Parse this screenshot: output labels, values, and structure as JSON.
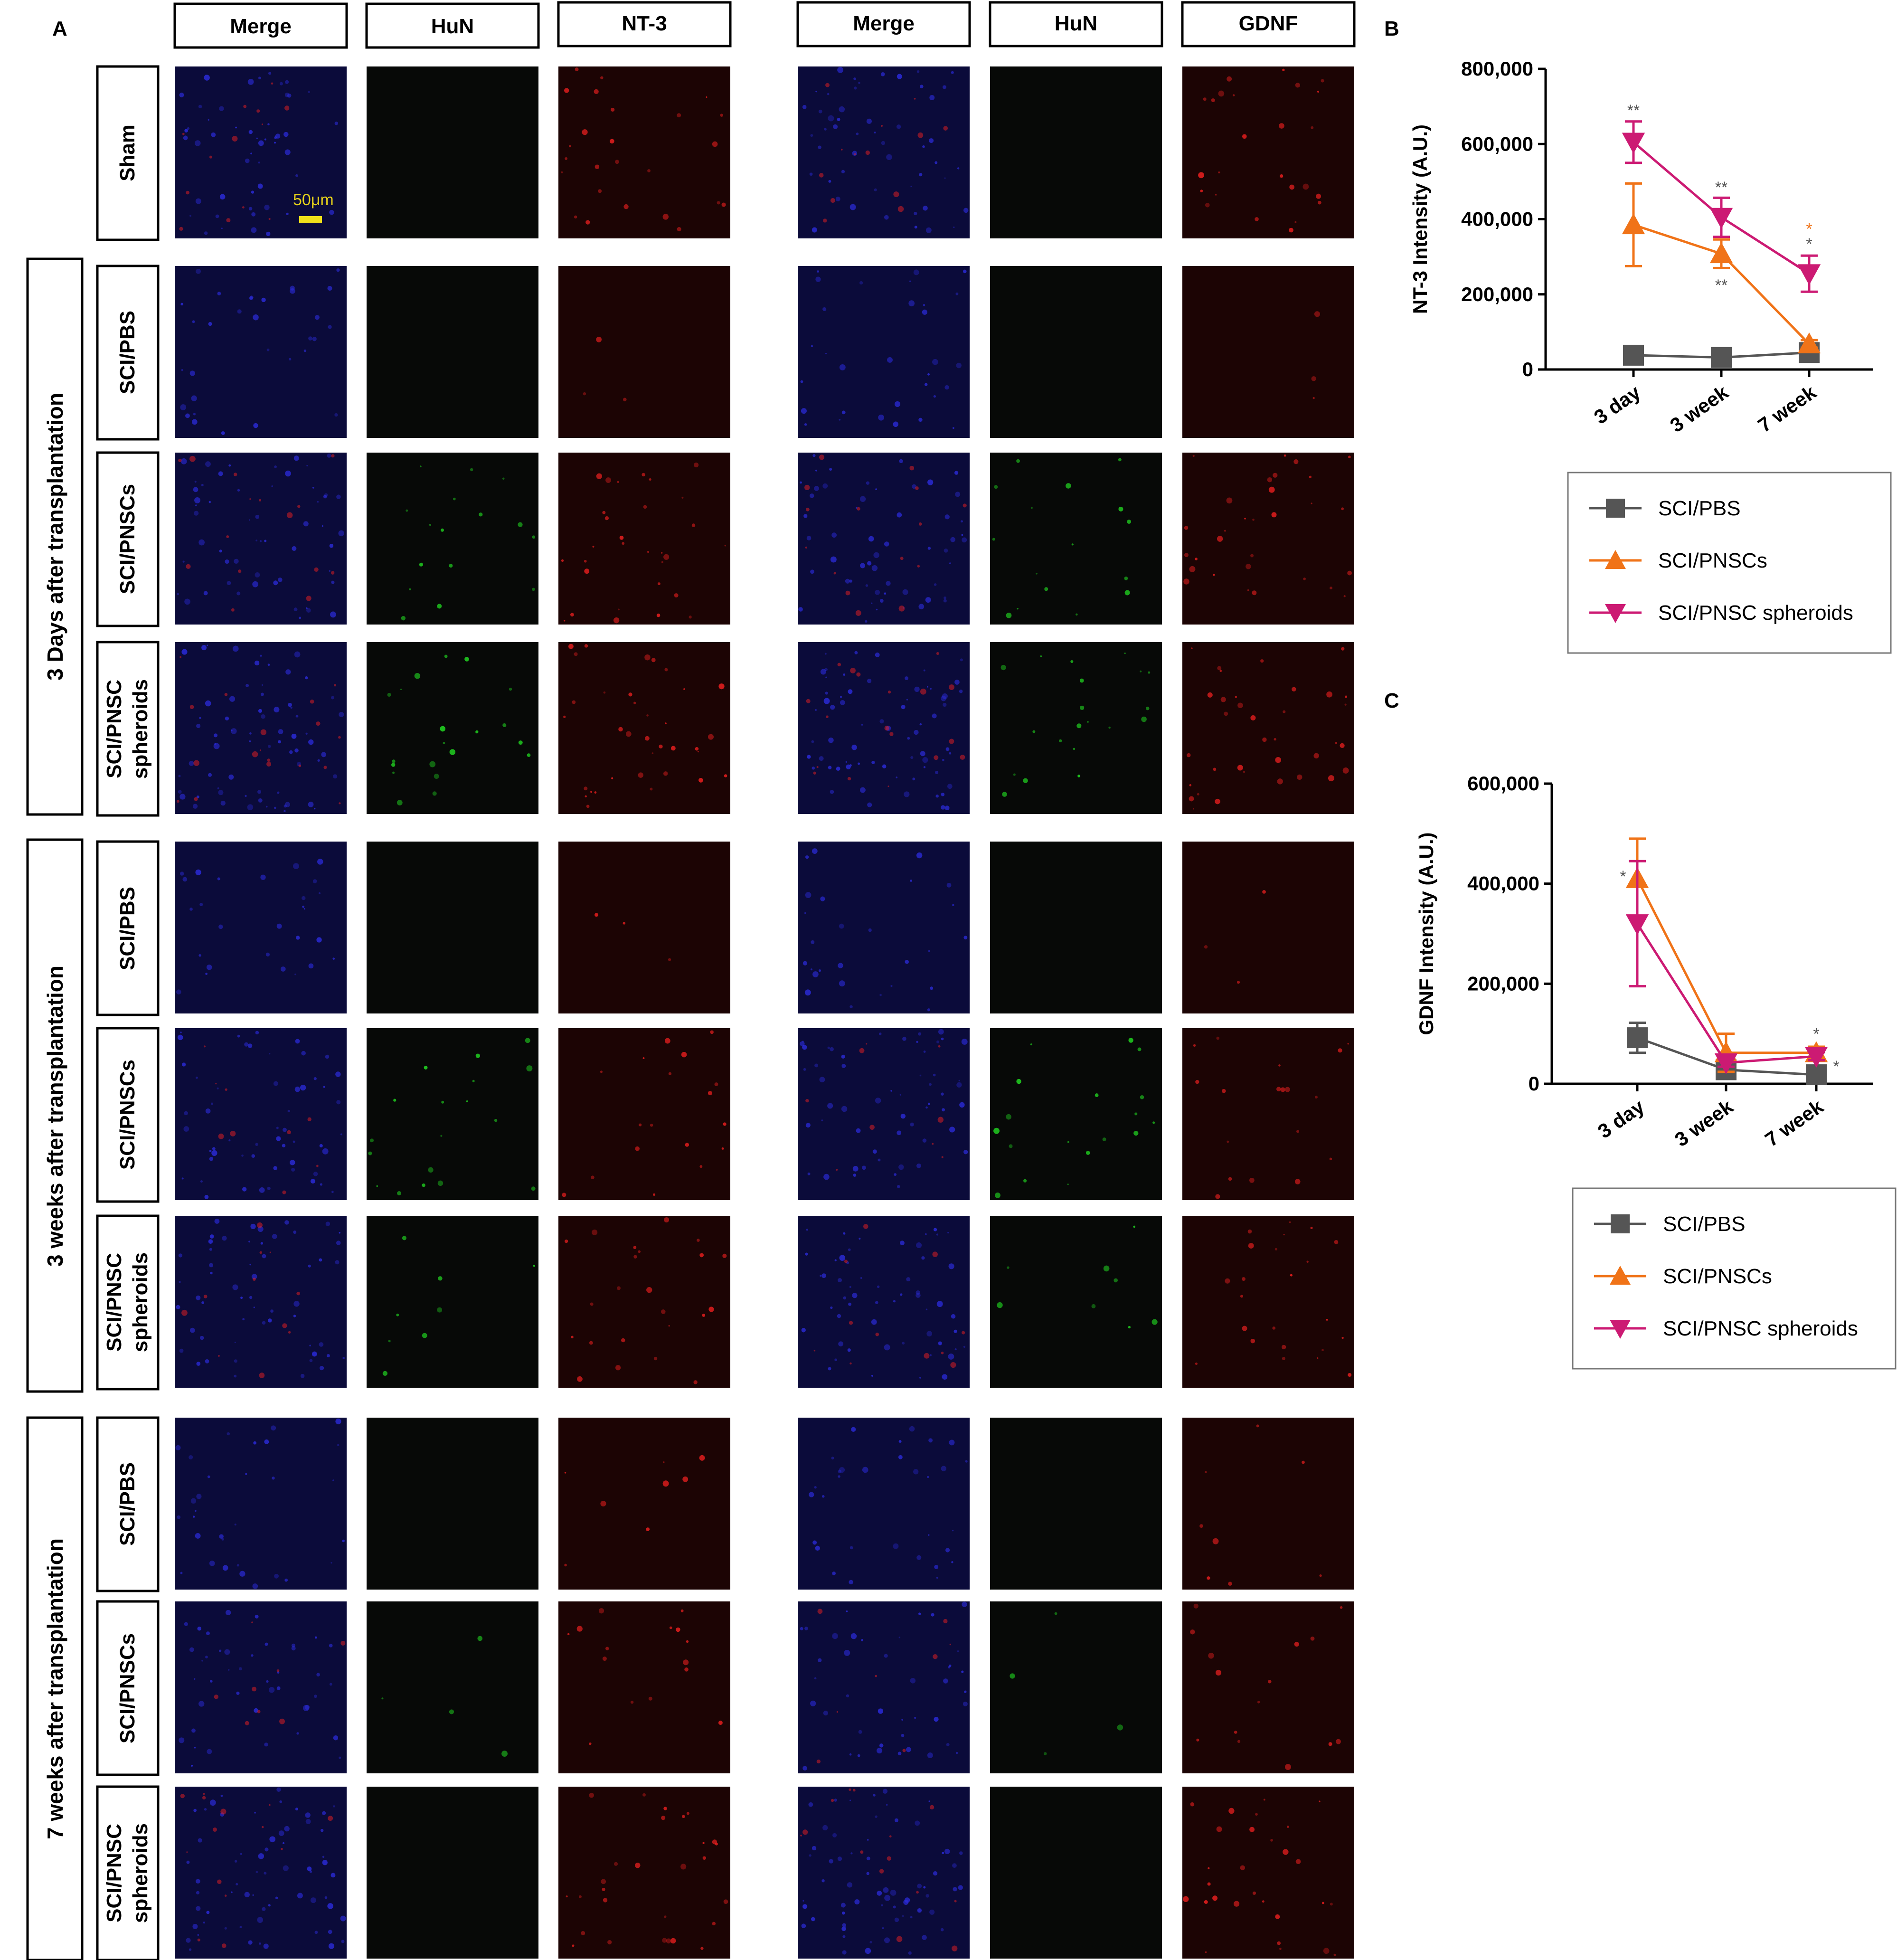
{
  "figure": {
    "panel_letters": [
      "A",
      "B",
      "C"
    ],
    "column_headers_left": [
      "Merge",
      "HuN",
      "NT-3"
    ],
    "column_headers_right": [
      "Merge",
      "HuN",
      "GDNF"
    ],
    "scale_bar_label": "50μm",
    "groups": [
      {
        "label": "",
        "rows": [
          "Sham"
        ]
      },
      {
        "label": "3 Days after transplantation",
        "rows": [
          "SCI/PBS",
          "SCI/PNSCs",
          "SCI/PNSC spheroids"
        ]
      },
      {
        "label": "3 weeks after transplantation",
        "rows": [
          "SCI/PBS",
          "SCI/PNSCs",
          "SCI/PNSC spheroids"
        ]
      },
      {
        "label": "7 weeks after transplantation",
        "rows": [
          "SCI/PBS",
          "SCI/PNSCs",
          "SCI/PNSC spheroids"
        ]
      }
    ],
    "micrograph_colors": {
      "merge": "#1a1a7a",
      "hun": "#0a0f0a",
      "marker": "#2a0606",
      "green": "#22dd22",
      "red": "#ee2020",
      "blue": "#2b2bd9"
    }
  },
  "chart_data": [
    {
      "panel": "B",
      "type": "line",
      "ylabel": "NT-3 Intensity (A.U.)",
      "xlabel": "",
      "categories": [
        "3 day",
        "3 week",
        "7 week"
      ],
      "yticks": [
        "0",
        "200,000",
        "400,000",
        "600,000",
        "800,000"
      ],
      "ylim": [
        0,
        800000
      ],
      "series": [
        {
          "name": "SCI/PBS",
          "color": "#555555",
          "marker": "square",
          "values": [
            38000,
            32000,
            45000
          ],
          "errors": [
            8000,
            6000,
            12000
          ]
        },
        {
          "name": "SCI/PNSCs",
          "color": "#f07318",
          "marker": "triangle-up",
          "values": [
            385000,
            308000,
            68000
          ],
          "errors": [
            110000,
            38000,
            10000
          ]
        },
        {
          "name": "SCI/PNSC spheroids",
          "color": "#cc1a73",
          "marker": "triangle-down",
          "values": [
            605000,
            405000,
            255000
          ],
          "errors": [
            55000,
            52000,
            48000
          ]
        }
      ],
      "annotations": [
        {
          "category": "3 day",
          "value": 690000,
          "text": "**",
          "color": "#555555"
        },
        {
          "category": "3 week",
          "value": 485000,
          "text": "**",
          "color": "#555555"
        },
        {
          "category": "3 week",
          "value": 225000,
          "text": "**",
          "color": "#555555"
        },
        {
          "category": "7 week",
          "value": 375000,
          "text": "*",
          "color": "#f07318"
        },
        {
          "category": "7 week",
          "value": 335000,
          "text": "*",
          "color": "#555555"
        }
      ],
      "legend": {
        "placement": "below",
        "entries": [
          "SCI/PBS",
          "SCI/PNSCs",
          "SCI/PNSC spheroids"
        ]
      }
    },
    {
      "panel": "C",
      "type": "line",
      "ylabel": "GDNF Intensity (A.U.)",
      "xlabel": "",
      "categories": [
        "3 day",
        "3 week",
        "7 week"
      ],
      "yticks": [
        "0",
        "200,000",
        "400,000",
        "600,000"
      ],
      "ylim": [
        0,
        600000
      ],
      "series": [
        {
          "name": "SCI/PBS",
          "color": "#555555",
          "marker": "square",
          "values": [
            92000,
            28000,
            18000
          ],
          "errors": [
            30000,
            5000,
            5000
          ]
        },
        {
          "name": "SCI/PNSCs",
          "color": "#f07318",
          "marker": "triangle-up",
          "values": [
            410000,
            62000,
            62000
          ],
          "errors": [
            80000,
            38000,
            12000
          ]
        },
        {
          "name": "SCI/PNSC spheroids",
          "color": "#cc1a73",
          "marker": "triangle-down",
          "values": [
            320000,
            42000,
            55000
          ],
          "errors": [
            125000,
            8000,
            8000
          ]
        }
      ],
      "annotations": [
        {
          "category": "3 day",
          "value": 415000,
          "text": "*",
          "color": "#555555",
          "side": "left"
        },
        {
          "category": "7 week",
          "value": 100000,
          "text": "*",
          "color": "#555555",
          "side": "center"
        },
        {
          "category": "7 week",
          "value": 35000,
          "text": "*",
          "color": "#555555",
          "side": "right"
        }
      ],
      "legend": {
        "placement": "below",
        "entries": [
          "SCI/PBS",
          "SCI/PNSCs",
          "SCI/PNSC spheroids"
        ]
      }
    }
  ]
}
